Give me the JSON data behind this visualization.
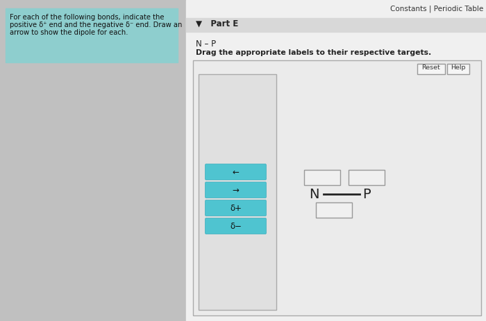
{
  "overall_bg": "#c0c0c0",
  "right_bg": "#f0f0f0",
  "left_panel_bg": "#8ecece",
  "left_panel_text_line1": "For each of the following bonds, indicate the",
  "left_panel_text_line2": "positive δ⁺ end and the negative δ⁻ end. Draw an",
  "left_panel_text_line3": "arrow to show the dipole for each.",
  "top_right_text": "Constants | Periodic Table",
  "part_e_bg": "#d8d8d8",
  "part_e_text": "▼   Part E",
  "bond_label": "N – P",
  "drag_text": "Drag the appropriate labels to their respective targets.",
  "reset_btn": "Reset",
  "help_btn": "Help",
  "main_panel_bg": "#ebebeb",
  "main_panel_border": "#aaaaaa",
  "inner_panel_bg": "#e0e0e0",
  "inner_panel_border": "#aaaaaa",
  "btn_color": "#4fc4d0",
  "btn_border": "#3aacbc",
  "btn_texts": [
    "←",
    "→",
    "δ+",
    "δ−"
  ],
  "empty_box_bg": "#f0f0f0",
  "empty_box_border": "#999999",
  "n_label": "N",
  "p_label": "P",
  "reset_bg": "#f5f5f5",
  "reset_border": "#999999"
}
